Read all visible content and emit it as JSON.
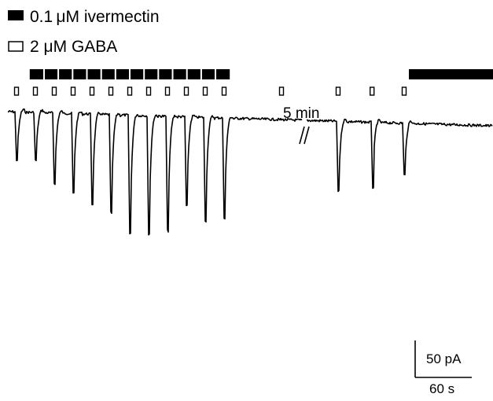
{
  "legend": {
    "ivermectin_label": "0.1 μM ivermectin",
    "gaba_label": "2 μM GABA"
  },
  "gap_label": "5 min",
  "scale_bar": {
    "current_label": "50 pA",
    "time_label": "60 s",
    "current_pA": 50,
    "time_s": 60
  },
  "colors": {
    "trace": "#000000",
    "ivermectin_bar": "#000000",
    "gaba_marker_fill": "#ffffff"
  },
  "chart_data": {
    "type": "line",
    "x_unit": "s",
    "y_unit": "pA",
    "pre_gap": {
      "gaba_applications_s": [
        0,
        20,
        40,
        60,
        80,
        100,
        120,
        140,
        160,
        180,
        200,
        220
      ],
      "peak_current_pA": [
        -65,
        -65,
        -95,
        -108,
        -122,
        -133,
        -160,
        -160,
        -155,
        -120,
        -140,
        -135
      ],
      "ivermectin_s": [
        [
          14,
          226
        ]
      ]
    },
    "post_gap": {
      "gaba_applications_s": [
        0,
        60,
        96,
        130,
        230
      ],
      "peak_current_pA": [
        -105,
        -94,
        -88,
        -70,
        -100
      ],
      "ivermectin_s": [
        [
          135,
          230
        ]
      ]
    }
  }
}
